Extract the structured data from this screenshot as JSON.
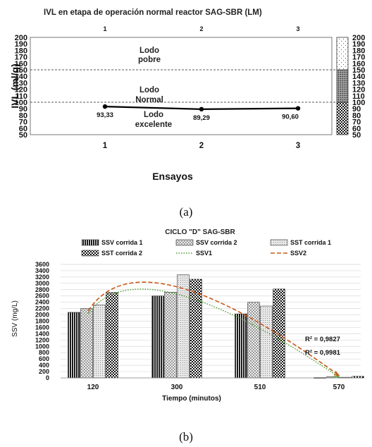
{
  "panel_a": {
    "title": "IVL en etapa de operación normal reactor SAG-SBR (LM)",
    "caption": "(a)",
    "top_ticks": [
      "1",
      "2",
      "3"
    ],
    "zones": [
      {
        "name": "pobre",
        "line1": "Lodo",
        "line2": "pobre"
      },
      {
        "name": "normal",
        "line1": "Lodo",
        "line2": "Normal"
      },
      {
        "name": "excelente",
        "line1": "Lodo",
        "line2": "excelente"
      }
    ]
  },
  "panel_b": {
    "title": "CICLO \"D\" SAG-SBR",
    "caption": "(b)",
    "r2": [
      "R² = 0,9827",
      "R² = 0,9981"
    ]
  },
  "chart_data": [
    {
      "type": "line",
      "title": "IVL en etapa de operación normal reactor SAG-SBR (LM)",
      "xlabel": "Ensayos",
      "ylabel": "IVL (ml/g)",
      "categories": [
        "1",
        "2",
        "3"
      ],
      "values": [
        93.33,
        89.29,
        90.6
      ],
      "data_labels": [
        "93,33",
        "89,29",
        "90,60"
      ],
      "ylim": [
        50,
        200
      ],
      "yticks": [
        "50",
        "60",
        "70",
        "80",
        "90",
        "100",
        "110",
        "120",
        "130",
        "140",
        "150",
        "160",
        "170",
        "180",
        "190",
        "200"
      ],
      "reference_lines": [
        100,
        150
      ],
      "zone_bar": [
        {
          "from": 50,
          "to": 100,
          "pattern": "checker"
        },
        {
          "from": 100,
          "to": 150,
          "pattern": "dense-dots"
        },
        {
          "from": 150,
          "to": 200,
          "pattern": "sparse-dots"
        }
      ],
      "grid": false
    },
    {
      "type": "bar",
      "title": "CICLO \"D\" SAG-SBR",
      "xlabel": "Tiempo (minutos)",
      "ylabel": "SSV (mg/L)",
      "categories": [
        "120",
        "300",
        "510",
        "570"
      ],
      "ylim": [
        0,
        3600
      ],
      "yticks": [
        "0",
        "200",
        "400",
        "600",
        "800",
        "1000",
        "1200",
        "1400",
        "1600",
        "1800",
        "2000",
        "2200",
        "2400",
        "2600",
        "2800",
        "3000",
        "3200",
        "3400",
        "3600"
      ],
      "grid": true,
      "legend_position": "top",
      "series": [
        {
          "name": "SSV corrida 1",
          "values": [
            2080,
            2600,
            2030,
            10
          ],
          "pattern": "vertical-stripes"
        },
        {
          "name": "SSV corrida 2",
          "values": [
            2200,
            2720,
            2400,
            40
          ],
          "pattern": "light-grid"
        },
        {
          "name": "SST corrida 1",
          "values": [
            2310,
            3270,
            2280,
            20
          ],
          "pattern": "dots"
        },
        {
          "name": "SST corrida 2",
          "values": [
            2710,
            3130,
            2820,
            50
          ],
          "pattern": "checker"
        }
      ],
      "trendlines": [
        {
          "name": "SSV1",
          "style": "dotted",
          "color": "#4c9a2a",
          "x": [
            110,
            300,
            570
          ],
          "y": [
            2050,
            2660,
            30
          ],
          "r2": "R² = 0,9981"
        },
        {
          "name": "SSV2",
          "style": "dashed",
          "color": "#c85a18",
          "x": [
            110,
            300,
            570
          ],
          "y": [
            2130,
            2890,
            80
          ],
          "r2": "R² = 0,9827"
        }
      ]
    }
  ]
}
